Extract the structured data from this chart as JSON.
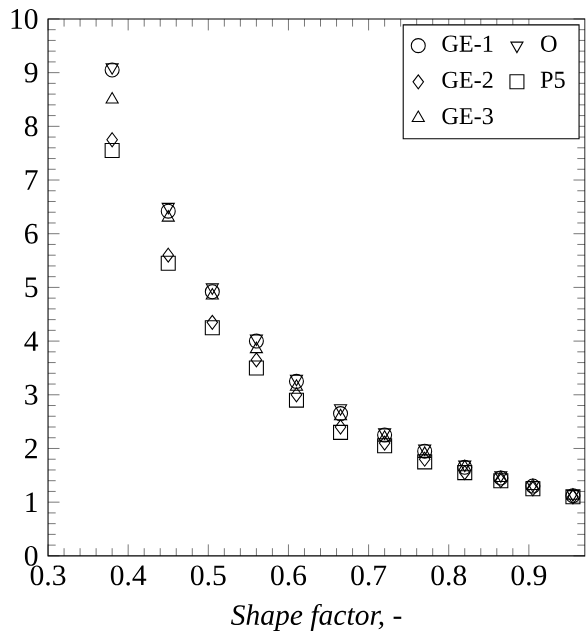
{
  "chart_data": {
    "type": "scatter",
    "xlabel": "*Shape factor, -*",
    "x": [
      0.38,
      0.45,
      0.505,
      0.56,
      0.61,
      0.665,
      0.72,
      0.77,
      0.82,
      0.865,
      0.905,
      0.955
    ],
    "series": [
      {
        "name": "GE-1",
        "color": "#000000",
        "marker": "circle",
        "values": [
          9.05,
          6.42,
          4.92,
          4.0,
          3.25,
          2.65,
          2.25,
          1.95,
          1.65,
          1.45,
          1.3,
          1.12
        ]
      },
      {
        "name": "GE-2",
        "color": "#000000",
        "marker": "diamond",
        "values": [
          7.75,
          5.6,
          4.35,
          3.65,
          3.0,
          2.4,
          2.1,
          1.8,
          1.55,
          1.4,
          1.25,
          1.1
        ]
      },
      {
        "name": "GE-3",
        "color": "#000000",
        "marker": "triangle",
        "values": [
          8.5,
          6.3,
          4.85,
          3.85,
          3.15,
          2.6,
          2.2,
          1.9,
          1.65,
          1.45,
          1.3,
          1.12
        ]
      },
      {
        "name": "O",
        "color": "#000000",
        "marker": "triangle down",
        "values": [
          9.1,
          6.5,
          5.0,
          4.05,
          3.3,
          2.75,
          2.3,
          2.0,
          1.7,
          1.5,
          1.32,
          1.15
        ]
      },
      {
        "name": "P5",
        "color": "#000000",
        "marker": "square",
        "values": [
          7.55,
          5.45,
          4.25,
          3.5,
          2.9,
          2.3,
          2.05,
          1.75,
          1.55,
          1.4,
          1.25,
          1.1
        ]
      }
    ],
    "xlim": [
      0.3,
      0.97
    ],
    "ylim": [
      0,
      10
    ],
    "xticks": [
      0.3,
      0.4,
      0.5,
      0.6,
      0.7,
      0.8,
      0.9
    ],
    "yticks": [
      0,
      1,
      2,
      3,
      4,
      5,
      6,
      7,
      8,
      9,
      10
    ],
    "legend": "top right",
    "grid": false
  }
}
